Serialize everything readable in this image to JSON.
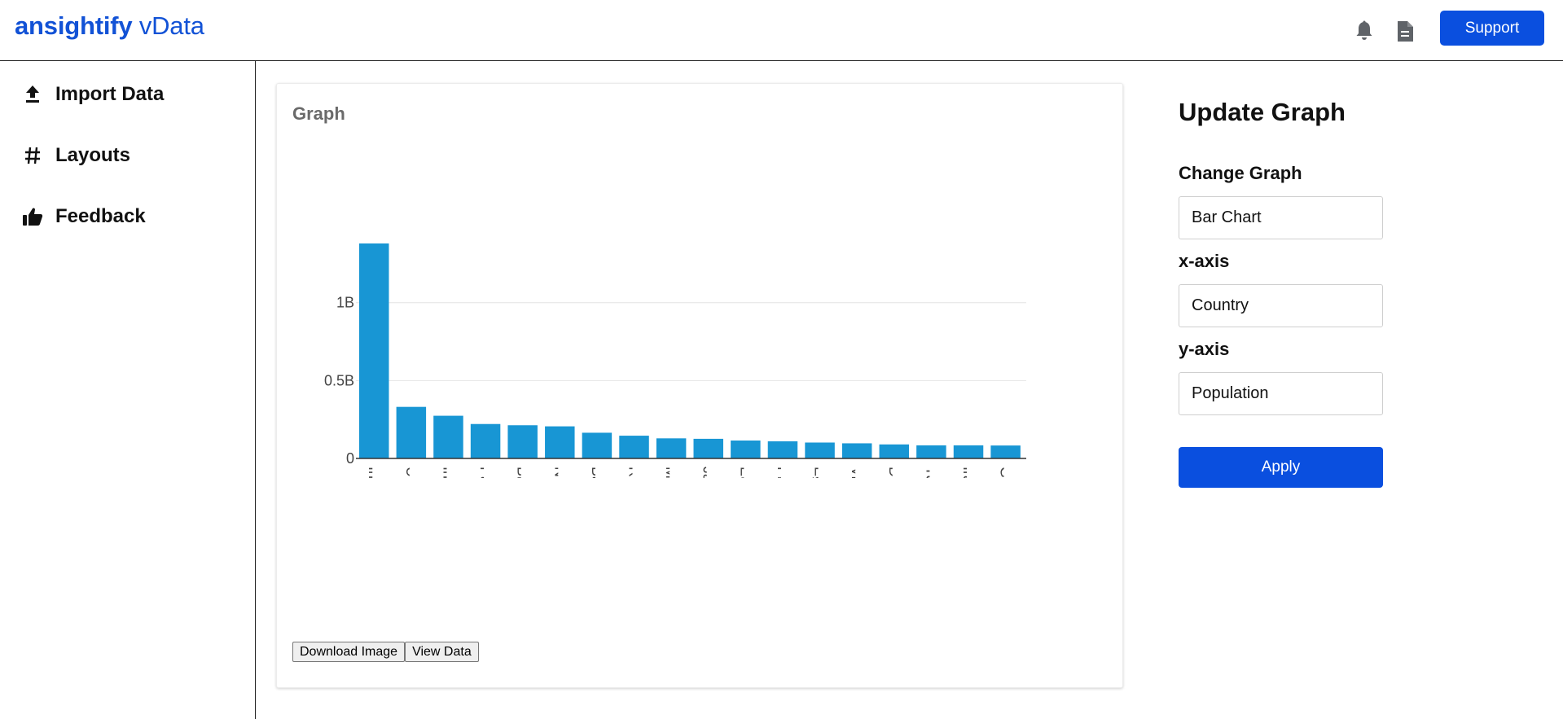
{
  "header": {
    "brand_bold": "ansightify",
    "brand_light": " vData",
    "icons": [
      "bell-icon",
      "document-icon"
    ],
    "support_label": "Support",
    "accent_color": "#0a4fdf"
  },
  "sidebar": {
    "items": [
      {
        "label": "Import Data",
        "icon": "upload-icon"
      },
      {
        "label": "Layouts",
        "icon": "hash-icon"
      },
      {
        "label": "Feedback",
        "icon": "thumbs-up-icon"
      }
    ]
  },
  "graph": {
    "title": "Graph",
    "download_label": "Download Image",
    "view_label": "View Data"
  },
  "chart_data": {
    "type": "bar",
    "categories": [
      "India",
      "United States",
      "Indonesia",
      "Pakistan",
      "Brazil",
      "Nigeria",
      "Bangladesh",
      "Russia",
      "Mexico",
      "Japan",
      "Ethiopia",
      "Philippines",
      "Egypt",
      "Vietnam",
      "DR Congo",
      "Turkey",
      "Iran",
      "Germany"
    ],
    "series": [
      {
        "values": [
          1380,
          331,
          274,
          221,
          213,
          206,
          165,
          146,
          129,
          126,
          115,
          110,
          102,
          97,
          90,
          84,
          84,
          83
        ]
      }
    ],
    "value_unit": "millions",
    "yticks": [
      {
        "value": 0,
        "label": "0"
      },
      {
        "value": 500,
        "label": "0.5B"
      },
      {
        "value": 1000,
        "label": "1B"
      }
    ],
    "ylim": [
      0,
      1380
    ],
    "bar_color": "#1896d4",
    "grid": true,
    "xlabel": "",
    "ylabel": ""
  },
  "update_panel": {
    "title": "Update Graph",
    "change_graph_label": "Change Graph",
    "change_graph_value": "Bar Chart",
    "xaxis_label": "x-axis",
    "xaxis_value": "Country",
    "yaxis_label": "y-axis",
    "yaxis_value": "Population",
    "apply_label": "Apply"
  }
}
